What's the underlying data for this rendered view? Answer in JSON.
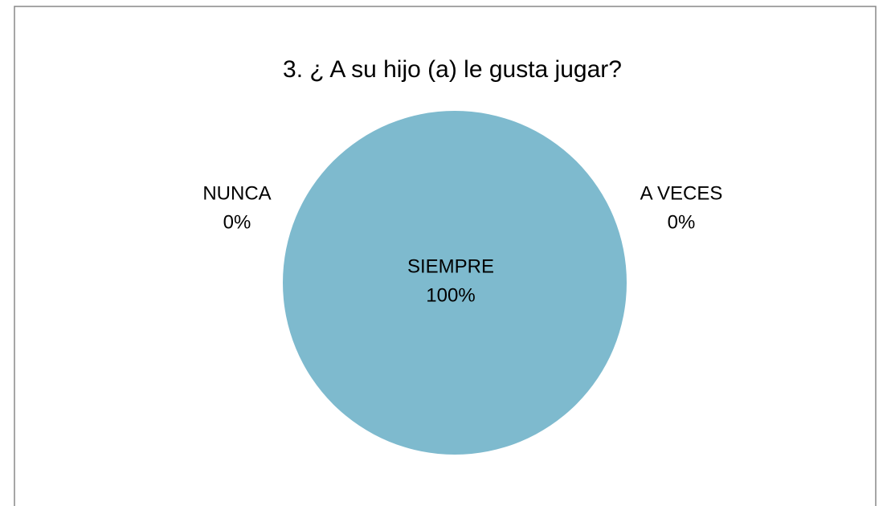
{
  "chart_data": {
    "type": "pie",
    "title": "3. ¿ A su hijo (a) le gusta jugar?",
    "categories": [
      "SIEMPRE",
      "A VECES",
      "NUNCA"
    ],
    "values": [
      100,
      0,
      0
    ],
    "value_labels": [
      "100%",
      "0%",
      "0%"
    ],
    "colors": [
      "#7ebace",
      "#c0504d",
      "#9bbb59"
    ]
  }
}
